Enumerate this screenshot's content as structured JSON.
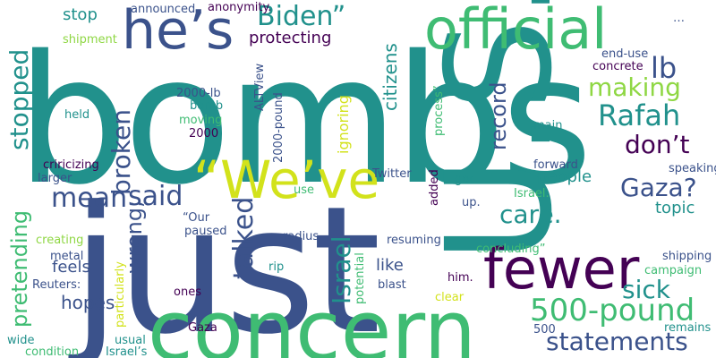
{
  "palette": {
    "purple": "#440154",
    "blue": "#3b528b",
    "teal": "#21918c",
    "green": "#3fbc73",
    "lime": "#8fd744",
    "yellow": "#d2e21b"
  },
  "words": [
    {
      "text": "bombs",
      "color": "teal"
    },
    {
      "text": "just",
      "color": "blue"
    },
    {
      "text": "U.S.",
      "color": "teal"
    },
    {
      "text": "concern",
      "color": "green"
    },
    {
      "text": "official",
      "color": "green"
    },
    {
      "text": "fewer",
      "color": "purple"
    },
    {
      "text": "he’s",
      "color": "blue"
    },
    {
      "text": "“We’ve",
      "color": "yellow"
    },
    {
      "text": "Biden”",
      "color": "teal"
    },
    {
      "text": "500-pound",
      "color": "green"
    },
    {
      "text": "Rafah",
      "color": "teal"
    },
    {
      "text": "statements",
      "color": "blue"
    },
    {
      "text": "said",
      "color": "blue"
    },
    {
      "text": "mean",
      "color": "blue"
    },
    {
      "text": "Gaza?",
      "color": "blue"
    },
    {
      "text": "don’t",
      "color": "purple"
    },
    {
      "text": "making",
      "color": "lime"
    },
    {
      "text": "care.",
      "color": "teal"
    },
    {
      "text": "sick",
      "color": "teal"
    },
    {
      "text": "lb",
      "color": "blue"
    },
    {
      "text": "broken",
      "color": "blue"
    },
    {
      "text": "talked",
      "color": "blue"
    },
    {
      "text": "Israel",
      "color": "teal"
    },
    {
      "text": "stopped",
      "color": "teal"
    },
    {
      "text": "pretending",
      "color": "green"
    },
    {
      "text": "wrong;",
      "color": "blue"
    },
    {
      "text": "record",
      "color": "blue"
    },
    {
      "text": "protecting",
      "color": "purple"
    },
    {
      "text": "stop",
      "color": "teal"
    },
    {
      "text": "people",
      "color": "teal"
    },
    {
      "text": "topic",
      "color": "teal"
    },
    {
      "text": "hopes",
      "color": "blue"
    },
    {
      "text": "feels",
      "color": "blue"
    },
    {
      "text": "like",
      "color": "blue"
    },
    {
      "text": "citizens",
      "color": "teal"
    },
    {
      "text": "ignoring",
      "color": "yellow"
    },
    {
      "text": "announced",
      "color": "blue"
    },
    {
      "text": "anonymity.",
      "color": "purple"
    },
    {
      "text": "shipment",
      "color": "lime"
    },
    {
      "text": "end-use",
      "color": "blue"
    },
    {
      "text": "concrete",
      "color": "purple"
    },
    {
      "text": "ALTView",
      "color": "blue"
    },
    {
      "text": "process”",
      "color": "green"
    },
    {
      "text": "2000-lb",
      "color": "blue"
    },
    {
      "text": "bomb",
      "color": "teal"
    },
    {
      "text": "moving",
      "color": "green"
    },
    {
      "text": "2000",
      "color": "purple"
    },
    {
      "text": "2000-pound",
      "color": "blue"
    },
    {
      "text": "main",
      "color": "teal"
    },
    {
      "text": "held",
      "color": "teal"
    },
    {
      "text": "criricizing",
      "color": "purple"
    },
    {
      "text": "larger",
      "color": "blue"
    },
    {
      "text": "Twitter",
      "color": "blue"
    },
    {
      "text": "forward",
      "color": "blue"
    },
    {
      "text": "speaking",
      "color": "blue"
    },
    {
      "text": "added",
      "color": "purple"
    },
    {
      "text": "got",
      "color": "teal"
    },
    {
      "text": "up.",
      "color": "blue"
    },
    {
      "text": "use",
      "color": "green"
    },
    {
      "text": "Israel.",
      "color": "green"
    },
    {
      "text": "“Our",
      "color": "blue"
    },
    {
      "text": "paused",
      "color": "blue"
    },
    {
      "text": "creating",
      "color": "lime"
    },
    {
      "text": "metal",
      "color": "blue"
    },
    {
      "text": "Reuters:",
      "color": "blue"
    },
    {
      "text": "particularly",
      "color": "yellow"
    },
    {
      "text": "ones",
      "color": "purple"
    },
    {
      "text": "rip",
      "color": "teal"
    },
    {
      "text": "radius.",
      "color": "blue"
    },
    {
      "text": "resuming",
      "color": "blue"
    },
    {
      "text": "concluding”",
      "color": "green"
    },
    {
      "text": "shipping",
      "color": "blue"
    },
    {
      "text": "campaign",
      "color": "green"
    },
    {
      "text": "him.",
      "color": "purple"
    },
    {
      "text": "blast",
      "color": "blue"
    },
    {
      "text": "potential",
      "color": "green"
    },
    {
      "text": "clear",
      "color": "yellow"
    },
    {
      "text": "Gaza",
      "color": "purple"
    },
    {
      "text": "usual",
      "color": "teal"
    },
    {
      "text": "500",
      "color": "blue"
    },
    {
      "text": "remains",
      "color": "teal"
    },
    {
      "text": "wide",
      "color": "teal"
    },
    {
      "text": "condition",
      "color": "green"
    },
    {
      "text": "Israel’s",
      "color": "teal"
    },
    {
      "text": "…",
      "color": "blue"
    }
  ]
}
